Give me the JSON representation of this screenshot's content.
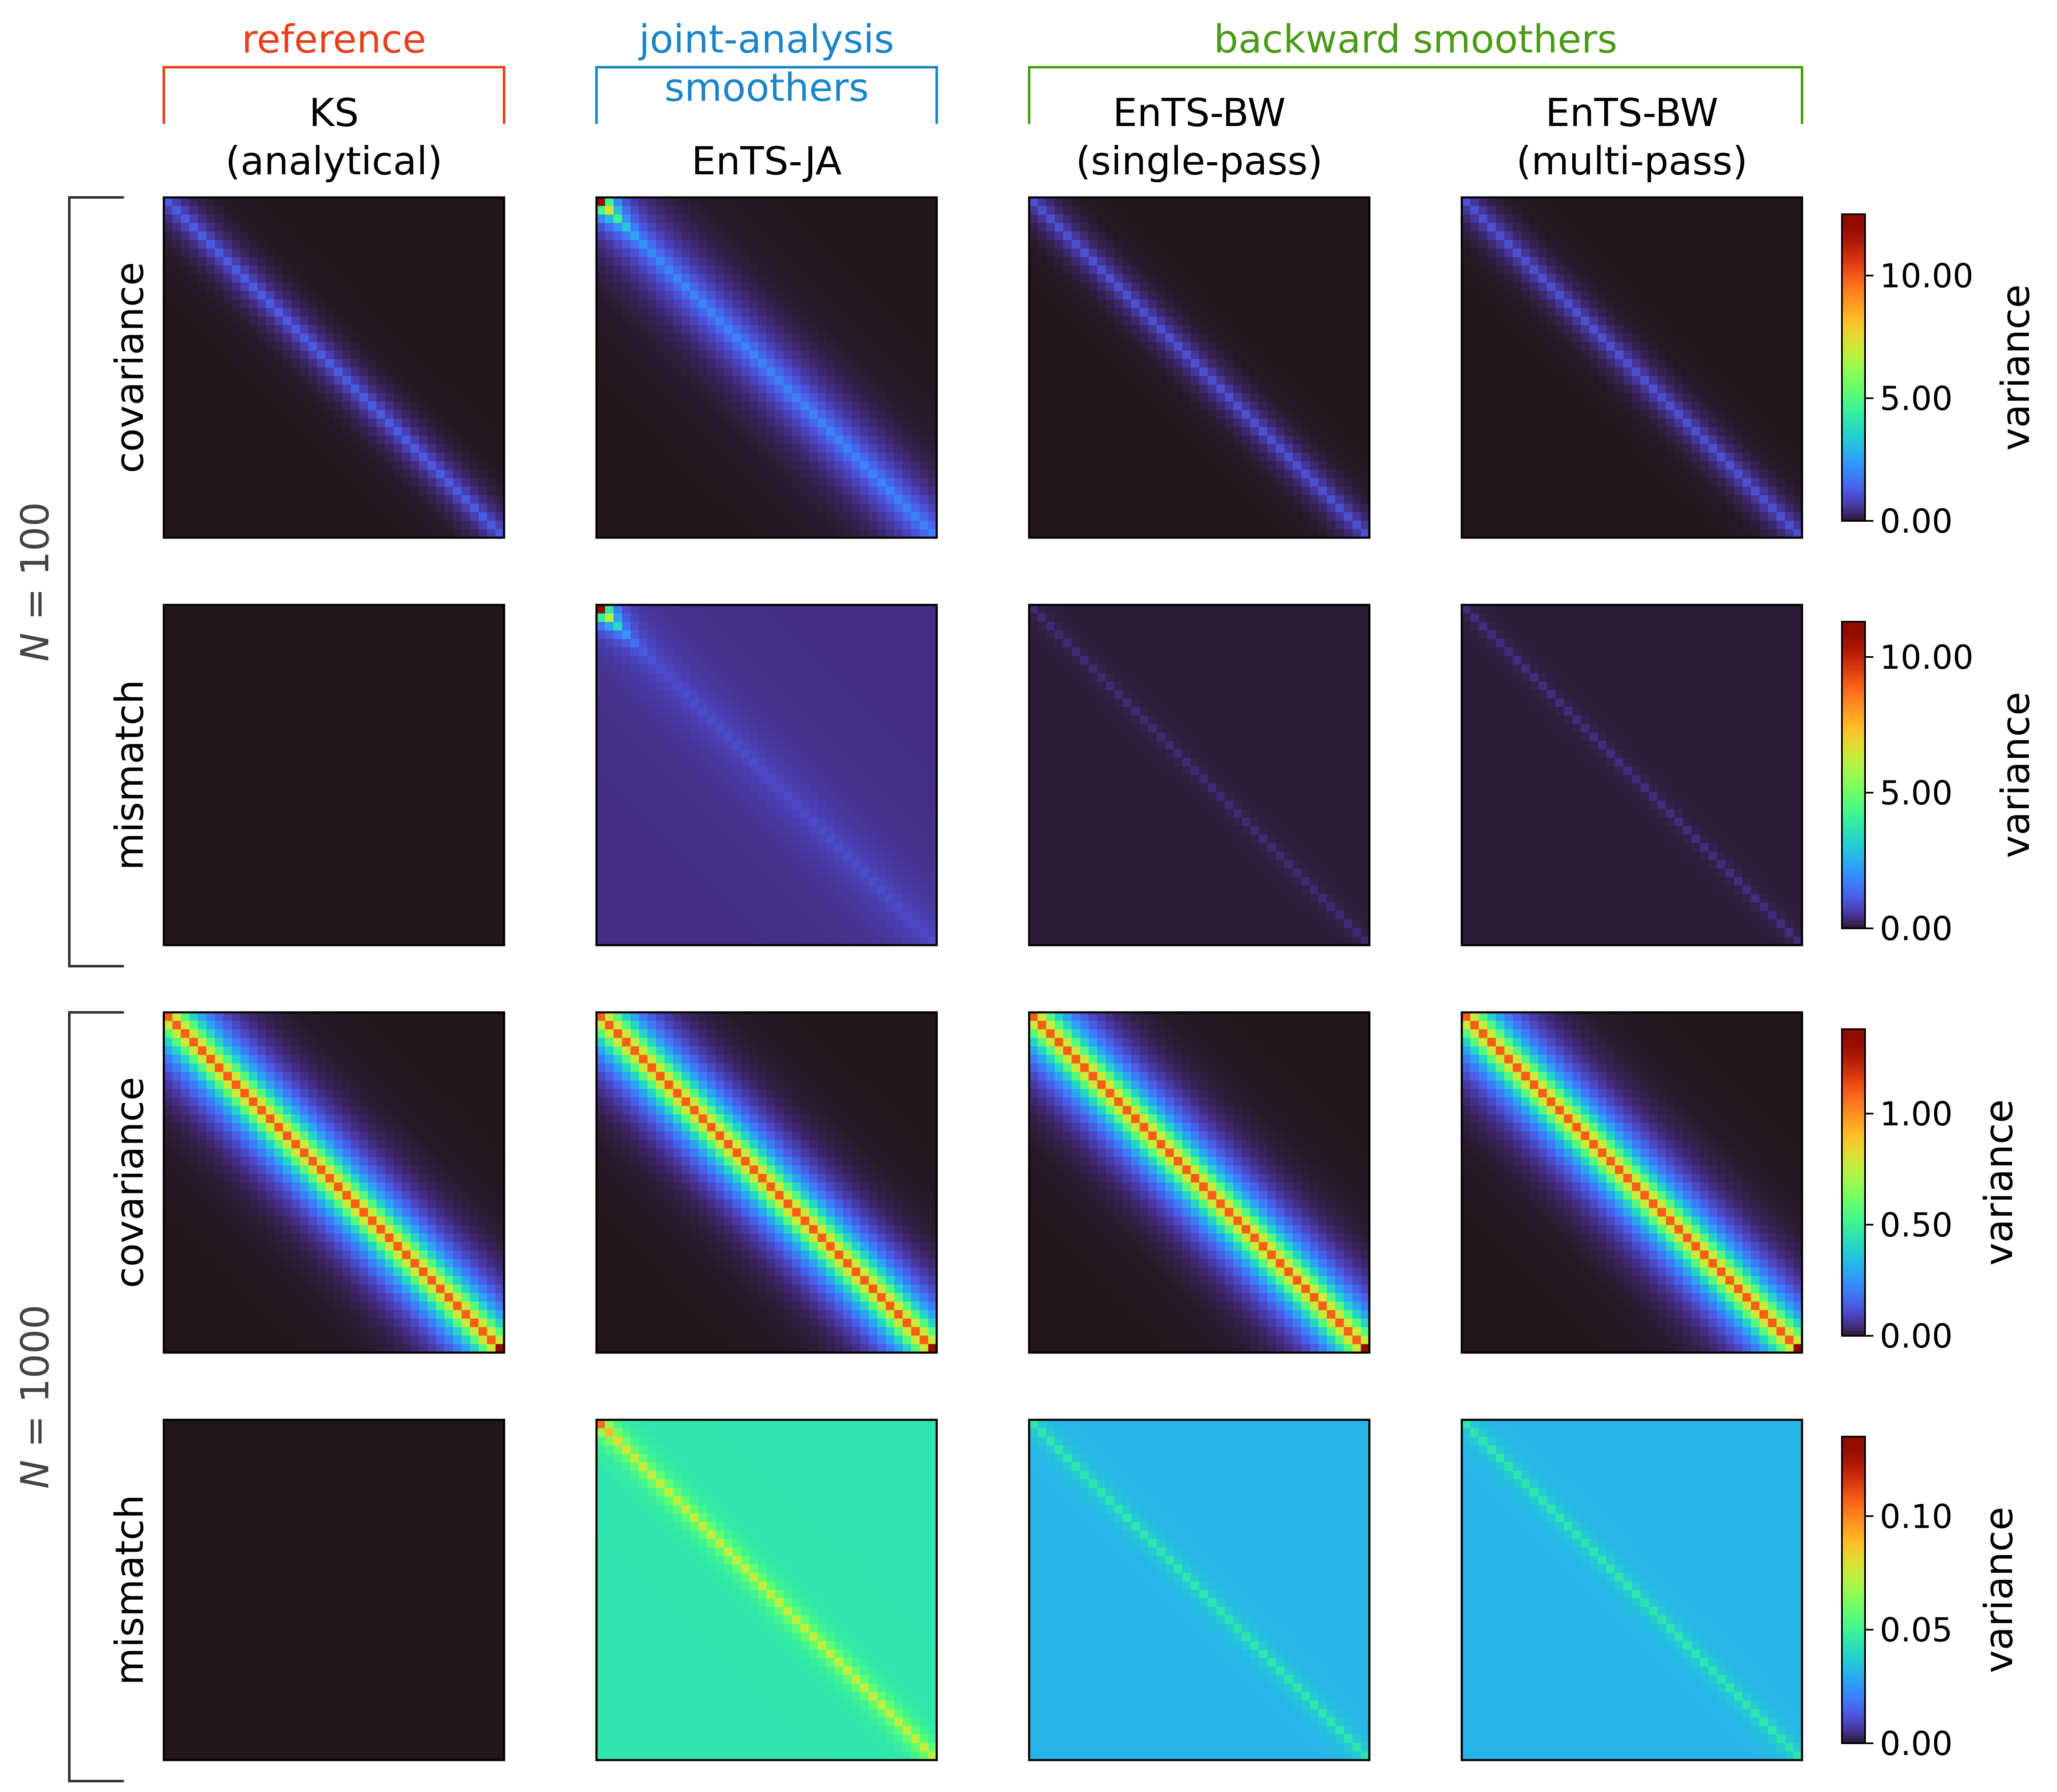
{
  "groups": [
    {
      "label": "reference",
      "color": "#e8401c"
    },
    {
      "label": "joint-analysis\nsmoothers",
      "color": "#1b85c8"
    },
    {
      "label": "backward smoothers",
      "color": "#4c9a18"
    }
  ],
  "columns": [
    {
      "label": "KS\n(analytical)"
    },
    {
      "label": "EnTS-JA"
    },
    {
      "label": "EnTS-BW\n(single-pass)"
    },
    {
      "label": "EnTS-BW\n(multi-pass)"
    }
  ],
  "ensembles": [
    {
      "label": "N = 100",
      "italic_part": "N",
      "rest": " = 100"
    },
    {
      "label": "N = 1000",
      "italic_part": "N",
      "rest": " = 1000"
    }
  ],
  "row_labels": [
    "covariance",
    "mismatch",
    "covariance",
    "mismatch"
  ],
  "colorbar_label": "variance",
  "colormap": "turbo",
  "chart_data": [
    {
      "type": "heatmap",
      "row": "covariance",
      "ensemble": "N = 100",
      "size": 40,
      "vmin": 0,
      "vmax": 12.5,
      "colorbar_ticks": [
        0,
        5,
        10
      ],
      "colorbar_tick_labels": [
        "0.00",
        "5.00",
        "10.00"
      ],
      "panels": [
        {
          "method": "KS (analytical)",
          "background": 0.0,
          "diagonal": 1.3,
          "offdiag_decay": 2.0,
          "top_left_boost": 0.0
        },
        {
          "method": "EnTS-JA",
          "background": 0.0,
          "diagonal": 2.0,
          "offdiag_decay": 3.5,
          "top_left_boost": 11.0
        },
        {
          "method": "EnTS-BW (single-pass)",
          "background": 0.0,
          "diagonal": 1.1,
          "offdiag_decay": 1.8,
          "top_left_boost": 0.0
        },
        {
          "method": "EnTS-BW (multi-pass)",
          "background": 0.0,
          "diagonal": 1.1,
          "offdiag_decay": 1.8,
          "top_left_boost": 0.0
        }
      ]
    },
    {
      "type": "heatmap",
      "row": "mismatch",
      "ensemble": "N = 100",
      "size": 40,
      "vmin": 0,
      "vmax": 11.3,
      "colorbar_ticks": [
        0,
        5,
        10
      ],
      "colorbar_tick_labels": [
        "0.00",
        "5.00",
        "10.00"
      ],
      "panels": [
        {
          "method": "KS (analytical)",
          "background": 0.0,
          "diagonal": 0.0,
          "offdiag_decay": 1.0,
          "top_left_boost": 0.0
        },
        {
          "method": "EnTS-JA",
          "background": 0.45,
          "diagonal": 0.9,
          "offdiag_decay": 4.0,
          "top_left_boost": 10.5
        },
        {
          "method": "EnTS-BW (single-pass)",
          "background": 0.1,
          "diagonal": 0.35,
          "offdiag_decay": 0.8,
          "top_left_boost": 0.0
        },
        {
          "method": "EnTS-BW (multi-pass)",
          "background": 0.1,
          "diagonal": 0.4,
          "offdiag_decay": 0.8,
          "top_left_boost": 0.0
        }
      ]
    },
    {
      "type": "heatmap",
      "row": "covariance",
      "ensemble": "N = 1000",
      "size": 40,
      "vmin": 0,
      "vmax": 1.38,
      "colorbar_ticks": [
        0,
        0.5,
        1.0
      ],
      "colorbar_tick_labels": [
        "0.00",
        "0.50",
        "1.00"
      ],
      "panels": [
        {
          "method": "KS (analytical)",
          "background": 0.0,
          "diagonal": 1.1,
          "offdiag_decay": 3.0,
          "top_left_boost": 0.0
        },
        {
          "method": "EnTS-JA",
          "background": 0.0,
          "diagonal": 1.1,
          "offdiag_decay": 3.0,
          "top_left_boost": 0.0
        },
        {
          "method": "EnTS-BW (single-pass)",
          "background": 0.0,
          "diagonal": 1.1,
          "offdiag_decay": 3.0,
          "top_left_boost": 0.0
        },
        {
          "method": "EnTS-BW (multi-pass)",
          "background": 0.0,
          "diagonal": 1.1,
          "offdiag_decay": 3.0,
          "top_left_boost": 0.0
        }
      ]
    },
    {
      "type": "heatmap",
      "row": "mismatch",
      "ensemble": "N = 1000",
      "size": 40,
      "vmin": 0,
      "vmax": 0.135,
      "colorbar_ticks": [
        0,
        0.05,
        0.1
      ],
      "colorbar_tick_labels": [
        "0.00",
        "0.05",
        "0.10"
      ],
      "panels": [
        {
          "method": "KS (analytical)",
          "background": 0.0,
          "diagonal": 0.0,
          "offdiag_decay": 1.0,
          "top_left_boost": 0.0
        },
        {
          "method": "EnTS-JA",
          "background": 0.045,
          "diagonal": 0.075,
          "offdiag_decay": 1.2,
          "top_left_boost": 0.03
        },
        {
          "method": "EnTS-BW (single-pass)",
          "background": 0.032,
          "diagonal": 0.045,
          "offdiag_decay": 1.0,
          "top_left_boost": 0.0
        },
        {
          "method": "EnTS-BW (multi-pass)",
          "background": 0.032,
          "diagonal": 0.045,
          "offdiag_decay": 1.0,
          "top_left_boost": 0.0
        }
      ]
    }
  ]
}
